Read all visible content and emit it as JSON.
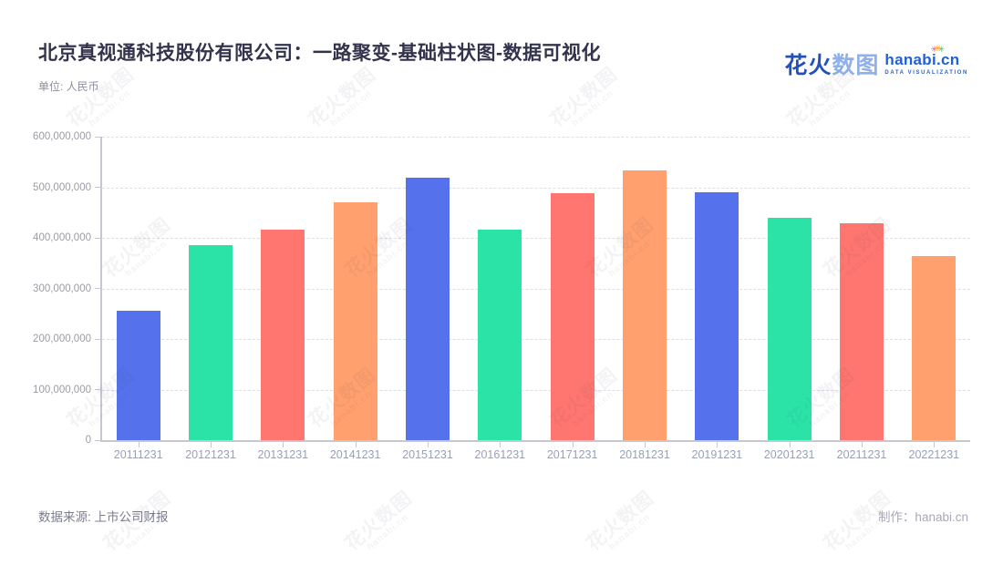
{
  "header": {
    "title": "北京真视通科技股份有限公司：一路聚变-基础柱状图-数据可视化",
    "unit_label": "单位: 人民币"
  },
  "logo": {
    "brand_cn_primary": "花火",
    "brand_cn_secondary": "数图",
    "brand_en": "hanabi.cn",
    "brand_tagline": "DATA VISUALIZATION",
    "color_primary": "#2350bf",
    "color_secondary": "#8fb0e8",
    "color_en": "#2060d8"
  },
  "watermark": {
    "line1": "花火数图",
    "line2": "hanabi.cn"
  },
  "footer": {
    "source": "数据来源: 上市公司财报",
    "credit": "制作：hanabi.cn"
  },
  "chart_data": {
    "type": "bar",
    "title": "北京真视通科技股份有限公司：一路聚变-基础柱状图-数据可视化",
    "unit": "人民币",
    "categories": [
      "20111231",
      "20121231",
      "20131231",
      "20141231",
      "20151231",
      "20161231",
      "20171231",
      "20181231",
      "20191231",
      "20201231",
      "20211231",
      "20221231"
    ],
    "values": [
      256000000,
      386000000,
      417000000,
      470000000,
      519000000,
      416000000,
      489000000,
      534000000,
      491000000,
      439000000,
      429000000,
      364000000
    ],
    "bar_color_cycle": [
      "#5571EC",
      "#2BE3A7",
      "#FF7670",
      "#FFA06E"
    ],
    "xlabel": "",
    "ylabel": "",
    "ylim": [
      0,
      600000000
    ],
    "y_tick_step": 100000000,
    "y_tick_labels": [
      "0",
      "100,000,000",
      "200,000,000",
      "300,000,000",
      "400,000,000",
      "500,000,000",
      "600,000,000"
    ],
    "grid": "horizontal-dashed",
    "legend": "none",
    "axis_color": "#c6c8d1",
    "grid_color": "#dddee6",
    "x_tick_label_color": "#99a0b4",
    "y_tick_label_color": "#9b9ba8"
  }
}
